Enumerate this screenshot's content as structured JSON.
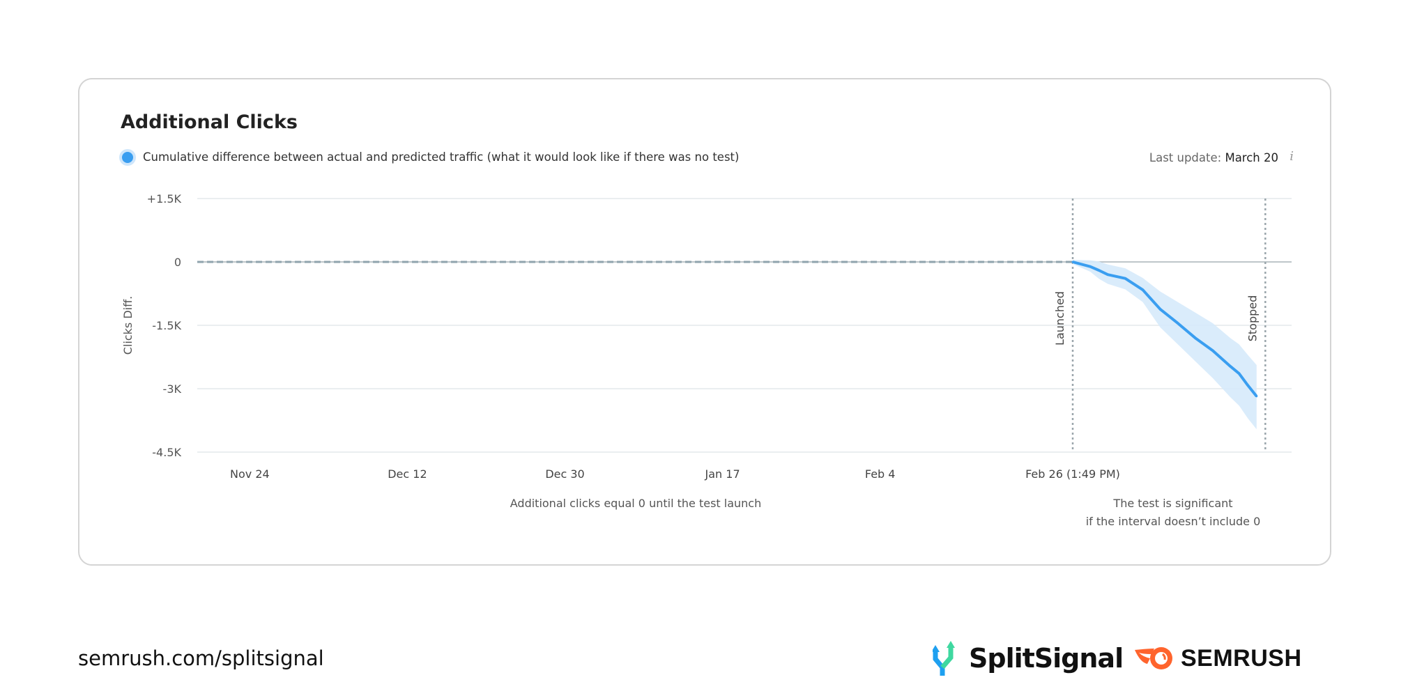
{
  "chart_data": {
    "type": "area",
    "title": "Additional Clicks",
    "legend": {
      "label": "Cumulative difference between actual and predicted traffic (what it would look like if there was no test)",
      "placement": "top-left",
      "color": "#3a9ef0"
    },
    "last_update_label": "Last update:",
    "last_update_value": "March 20",
    "ylabel": "Clicks Diff.",
    "ylim": [
      -4500,
      1500
    ],
    "y_ticks": [
      {
        "value": 1500,
        "label": "+1.5K"
      },
      {
        "value": 0,
        "label": "0"
      },
      {
        "value": -1500,
        "label": "-1.5K"
      },
      {
        "value": -3000,
        "label": "-3K"
      },
      {
        "value": -4500,
        "label": "-4.5K"
      }
    ],
    "xlim": [
      "Nov 18",
      "Mar 23"
    ],
    "x_ticks": [
      {
        "date": "Nov 24",
        "label": "Nov 24"
      },
      {
        "date": "Dec 12",
        "label": "Dec 12"
      },
      {
        "date": "Dec 30",
        "label": "Dec 30"
      },
      {
        "date": "Jan 17",
        "label": "Jan 17"
      },
      {
        "date": "Feb 4",
        "label": "Feb 4"
      },
      {
        "date": "Feb 26",
        "label": "Feb 26 (1:49 PM)"
      }
    ],
    "grid": true,
    "pre_launch": {
      "from": "Nov 18",
      "to": "Feb 26",
      "value": 0,
      "style": "dashed"
    },
    "markers": [
      {
        "date": "Feb 26",
        "label": "Launched"
      },
      {
        "date": "Mar 20",
        "label": "Stopped"
      }
    ],
    "series": [
      {
        "x": [
          "Feb 26",
          "Feb 28",
          "Mar 1",
          "Mar 2",
          "Mar 4",
          "Mar 6",
          "Mar 8",
          "Mar 10",
          "Mar 12",
          "Mar 14",
          "Mar 16",
          "Mar 17",
          "Mar 18",
          "Mar 19"
        ],
        "y": [
          0,
          -110,
          -200,
          -300,
          -390,
          -660,
          -1120,
          -1450,
          -1800,
          -2100,
          -2470,
          -2640,
          -2920,
          -3180
        ],
        "upper": [
          50,
          40,
          10,
          -60,
          -150,
          -380,
          -700,
          -950,
          -1200,
          -1450,
          -1800,
          -1950,
          -2200,
          -2440
        ],
        "lower": [
          -50,
          -230,
          -400,
          -520,
          -650,
          -950,
          -1550,
          -1950,
          -2350,
          -2750,
          -3200,
          -3400,
          -3700,
          -3960
        ]
      }
    ],
    "annotations": [
      "Additional clicks equal 0 until the test launch",
      "The test is significant",
      "if the interval doesn’t include 0"
    ],
    "colors": {
      "line": "#3a9ef0",
      "band": "#d6eafb",
      "dashed": "#8fa3ad",
      "grid": "#e3e8eb",
      "marker": "#9aa5ab"
    }
  },
  "footer": {
    "url": "semrush.com/splitsignal",
    "logo_splitsignal": "SplitSignal",
    "logo_semrush": "SEMRUSH"
  }
}
